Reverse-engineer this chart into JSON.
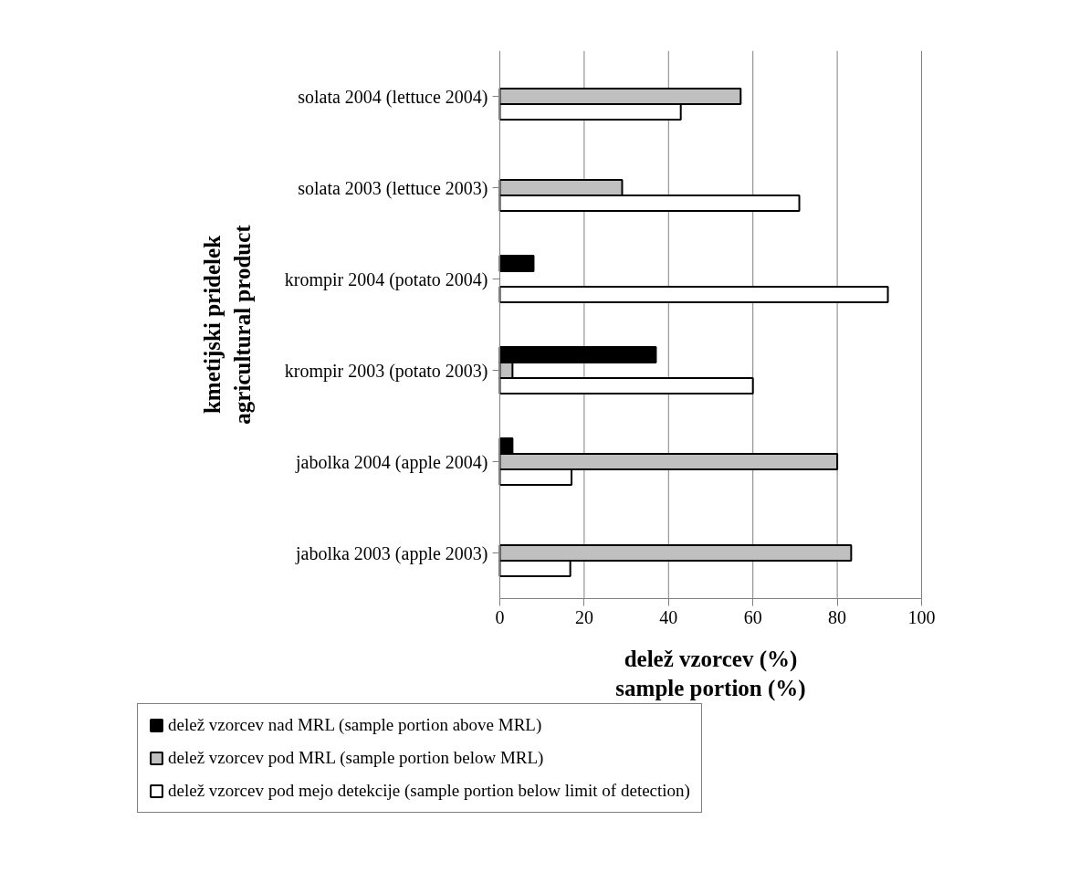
{
  "chart_data": {
    "type": "bar",
    "orientation": "horizontal",
    "categories": [
      "solata 2004 (lettuce 2004)",
      "solata 2003 (lettuce 2003)",
      "krompir 2004 (potato 2004)",
      "krompir 2003 (potato 2003)",
      "jabolka 2004 (apple 2004)",
      "jabolka 2003 (apple 2003)"
    ],
    "series": [
      {
        "name": "delež vzorcev nad MRL (sample portion above MRL)",
        "color": "#000000",
        "values": [
          null,
          null,
          8,
          37,
          3,
          null
        ]
      },
      {
        "name": "delež vzorcev pod MRL (sample portion below MRL)",
        "color": "#c0c0c0",
        "values": [
          57.1,
          29,
          null,
          3,
          80,
          83.3
        ]
      },
      {
        "name": "delež vzorcev pod mejo detekcije (sample portion below limit of detection)",
        "color": "#ffffff",
        "values": [
          42.9,
          71,
          92,
          60,
          17,
          16.7
        ]
      }
    ],
    "xlabel": "delež vzorcev (%)\nsample portion (%)",
    "ylabel": "kmetijski pridelek\nagricultural product",
    "xlim": [
      0,
      100
    ],
    "xticks": [
      0,
      20,
      40,
      60,
      80,
      100
    ],
    "grid": "x",
    "legend": "bottom"
  }
}
